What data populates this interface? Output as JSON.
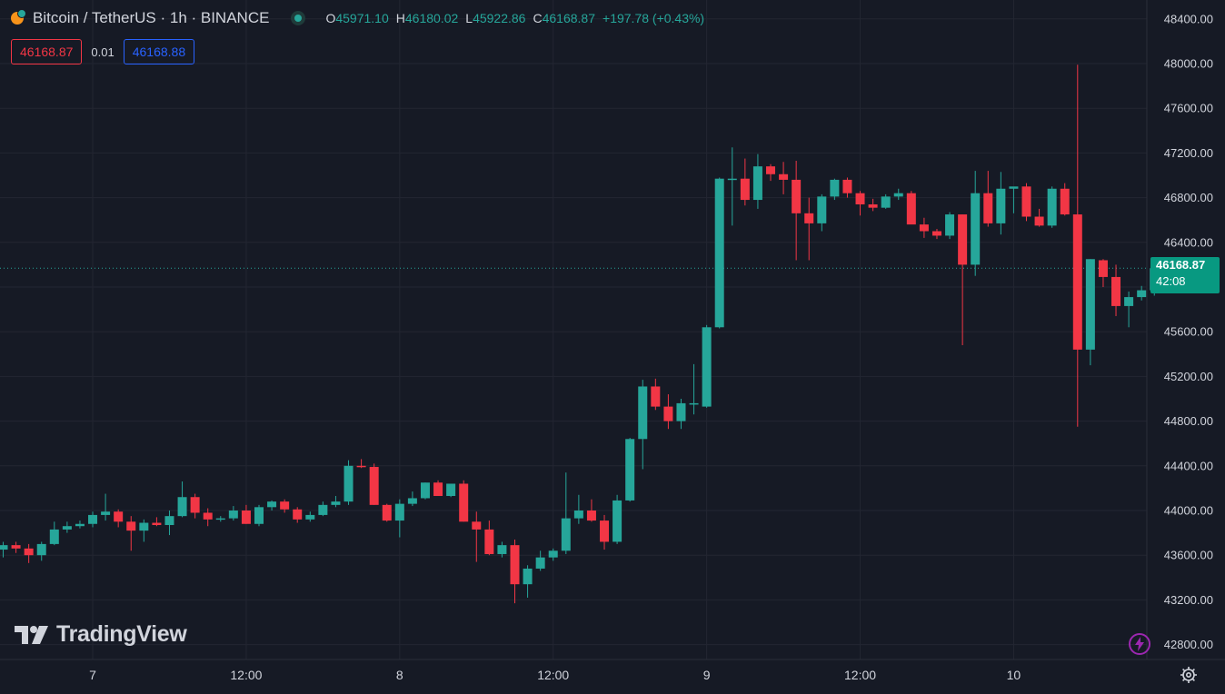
{
  "header": {
    "icon": "bitcoin-icon",
    "symbol_title": "Bitcoin / TetherUS · 1h · BINANCE",
    "ohlc": {
      "o_label": "O",
      "o_value": "45971.10",
      "h_label": "H",
      "h_value": "46180.02",
      "l_label": "L",
      "l_value": "45922.86",
      "c_label": "C",
      "c_value": "46168.87",
      "change": "+197.78 (+0.43%)"
    }
  },
  "trade": {
    "sell_price": "46168.87",
    "spread": "0.01",
    "buy_price": "46168.88"
  },
  "last_price": {
    "price": "46168.87",
    "countdown": "42:08"
  },
  "logo_text": "TradingView",
  "colors": {
    "background": "#161a25",
    "up": "#26a69a",
    "down": "#f23645",
    "grid": "#232632",
    "text": "#d1d4dc",
    "price_tag": "#089981"
  },
  "chart_data": {
    "type": "candlestick",
    "title": "Bitcoin / TetherUS · 1h · BINANCE",
    "xlabel": "",
    "ylabel": "",
    "ylim": [
      42700,
      48500
    ],
    "y_ticks": [
      "48400.00",
      "48000.00",
      "47600.00",
      "47200.00",
      "46800.00",
      "46400.00",
      "46000.00",
      "45600.00",
      "45200.00",
      "44800.00",
      "44400.00",
      "44000.00",
      "43600.00",
      "43200.00",
      "42800.00"
    ],
    "x_tick_labels": [
      {
        "label": "7",
        "index": 7
      },
      {
        "label": "12:00",
        "index": 19
      },
      {
        "label": "8",
        "index": 31
      },
      {
        "label": "12:00",
        "index": 43
      },
      {
        "label": "9",
        "index": 55
      },
      {
        "label": "12:00",
        "index": 67
      },
      {
        "label": "10",
        "index": 79
      }
    ],
    "grid": true,
    "last_price": 46168.87,
    "candles": [
      {
        "o": 43650,
        "h": 43720,
        "l": 43580,
        "c": 43690
      },
      {
        "o": 43690,
        "h": 43720,
        "l": 43620,
        "c": 43660
      },
      {
        "o": 43660,
        "h": 43700,
        "l": 43530,
        "c": 43600
      },
      {
        "o": 43600,
        "h": 43720,
        "l": 43550,
        "c": 43700
      },
      {
        "o": 43700,
        "h": 43900,
        "l": 43690,
        "c": 43830
      },
      {
        "o": 43830,
        "h": 43900,
        "l": 43800,
        "c": 43860
      },
      {
        "o": 43860,
        "h": 43910,
        "l": 43840,
        "c": 43880
      },
      {
        "o": 43880,
        "h": 43990,
        "l": 43850,
        "c": 43960
      },
      {
        "o": 43960,
        "h": 44150,
        "l": 43910,
        "c": 43990
      },
      {
        "o": 43990,
        "h": 44010,
        "l": 43850,
        "c": 43900
      },
      {
        "o": 43900,
        "h": 43950,
        "l": 43640,
        "c": 43820
      },
      {
        "o": 43820,
        "h": 43920,
        "l": 43720,
        "c": 43890
      },
      {
        "o": 43890,
        "h": 43940,
        "l": 43860,
        "c": 43870
      },
      {
        "o": 43870,
        "h": 44000,
        "l": 43780,
        "c": 43950
      },
      {
        "o": 43950,
        "h": 44260,
        "l": 43940,
        "c": 44120
      },
      {
        "o": 44120,
        "h": 44150,
        "l": 43930,
        "c": 43980
      },
      {
        "o": 43980,
        "h": 44020,
        "l": 43860,
        "c": 43920
      },
      {
        "o": 43920,
        "h": 43950,
        "l": 43900,
        "c": 43930
      },
      {
        "o": 43930,
        "h": 44040,
        "l": 43910,
        "c": 44000
      },
      {
        "o": 44000,
        "h": 44050,
        "l": 43880,
        "c": 43880
      },
      {
        "o": 43880,
        "h": 44050,
        "l": 43860,
        "c": 44030
      },
      {
        "o": 44030,
        "h": 44090,
        "l": 44000,
        "c": 44080
      },
      {
        "o": 44080,
        "h": 44100,
        "l": 43980,
        "c": 44010
      },
      {
        "o": 44010,
        "h": 44030,
        "l": 43890,
        "c": 43920
      },
      {
        "o": 43920,
        "h": 43990,
        "l": 43900,
        "c": 43960
      },
      {
        "o": 43960,
        "h": 44080,
        "l": 43950,
        "c": 44050
      },
      {
        "o": 44050,
        "h": 44130,
        "l": 44030,
        "c": 44080
      },
      {
        "o": 44080,
        "h": 44450,
        "l": 44050,
        "c": 44400
      },
      {
        "o": 44400,
        "h": 44460,
        "l": 44380,
        "c": 44390
      },
      {
        "o": 44390,
        "h": 44420,
        "l": 44050,
        "c": 44050
      },
      {
        "o": 44050,
        "h": 44060,
        "l": 43900,
        "c": 43910
      },
      {
        "o": 43910,
        "h": 44100,
        "l": 43760,
        "c": 44060
      },
      {
        "o": 44060,
        "h": 44170,
        "l": 44040,
        "c": 44110
      },
      {
        "o": 44110,
        "h": 44250,
        "l": 44100,
        "c": 44250
      },
      {
        "o": 44250,
        "h": 44270,
        "l": 44130,
        "c": 44130
      },
      {
        "o": 44130,
        "h": 44240,
        "l": 44120,
        "c": 44240
      },
      {
        "o": 44240,
        "h": 44270,
        "l": 43900,
        "c": 43900
      },
      {
        "o": 43900,
        "h": 43990,
        "l": 43540,
        "c": 43830
      },
      {
        "o": 43830,
        "h": 43910,
        "l": 43600,
        "c": 43610
      },
      {
        "o": 43610,
        "h": 43720,
        "l": 43580,
        "c": 43690
      },
      {
        "o": 43690,
        "h": 43740,
        "l": 43170,
        "c": 43340
      },
      {
        "o": 43340,
        "h": 43510,
        "l": 43220,
        "c": 43480
      },
      {
        "o": 43480,
        "h": 43640,
        "l": 43460,
        "c": 43580
      },
      {
        "o": 43580,
        "h": 43660,
        "l": 43550,
        "c": 43640
      },
      {
        "o": 43640,
        "h": 44340,
        "l": 43610,
        "c": 43930
      },
      {
        "o": 43930,
        "h": 44140,
        "l": 43880,
        "c": 44000
      },
      {
        "o": 44000,
        "h": 44100,
        "l": 43900,
        "c": 43910
      },
      {
        "o": 43910,
        "h": 43960,
        "l": 43650,
        "c": 43720
      },
      {
        "o": 43720,
        "h": 44140,
        "l": 43700,
        "c": 44090
      },
      {
        "o": 44090,
        "h": 44650,
        "l": 44080,
        "c": 44640
      },
      {
        "o": 44640,
        "h": 45170,
        "l": 44370,
        "c": 45110
      },
      {
        "o": 45110,
        "h": 45180,
        "l": 44900,
        "c": 44930
      },
      {
        "o": 44930,
        "h": 45040,
        "l": 44730,
        "c": 44800
      },
      {
        "o": 44800,
        "h": 45000,
        "l": 44730,
        "c": 44960
      },
      {
        "o": 44960,
        "h": 45310,
        "l": 44860,
        "c": 44960
      },
      {
        "o": 44930,
        "h": 45660,
        "l": 44920,
        "c": 45640
      },
      {
        "o": 45640,
        "h": 46980,
        "l": 45630,
        "c": 46970
      },
      {
        "o": 46970,
        "h": 47250,
        "l": 46550,
        "c": 46970
      },
      {
        "o": 46970,
        "h": 47150,
        "l": 46730,
        "c": 46780
      },
      {
        "o": 46780,
        "h": 47190,
        "l": 46700,
        "c": 47080
      },
      {
        "o": 47080,
        "h": 47100,
        "l": 46950,
        "c": 47010
      },
      {
        "o": 47010,
        "h": 47120,
        "l": 46830,
        "c": 46960
      },
      {
        "o": 46960,
        "h": 47130,
        "l": 46240,
        "c": 46660
      },
      {
        "o": 46660,
        "h": 46800,
        "l": 46240,
        "c": 46570
      },
      {
        "o": 46570,
        "h": 46830,
        "l": 46500,
        "c": 46810
      },
      {
        "o": 46810,
        "h": 46970,
        "l": 46780,
        "c": 46960
      },
      {
        "o": 46960,
        "h": 46980,
        "l": 46800,
        "c": 46840
      },
      {
        "o": 46840,
        "h": 46860,
        "l": 46640,
        "c": 46740
      },
      {
        "o": 46740,
        "h": 46790,
        "l": 46680,
        "c": 46710
      },
      {
        "o": 46710,
        "h": 46830,
        "l": 46700,
        "c": 46810
      },
      {
        "o": 46810,
        "h": 46880,
        "l": 46780,
        "c": 46840
      },
      {
        "o": 46840,
        "h": 46860,
        "l": 46580,
        "c": 46560
      },
      {
        "o": 46560,
        "h": 46620,
        "l": 46440,
        "c": 46500
      },
      {
        "o": 46500,
        "h": 46520,
        "l": 46430,
        "c": 46460
      },
      {
        "o": 46460,
        "h": 46670,
        "l": 46430,
        "c": 46650
      },
      {
        "o": 46650,
        "h": 46650,
        "l": 45480,
        "c": 46200
      },
      {
        "o": 46200,
        "h": 47040,
        "l": 46100,
        "c": 46840
      },
      {
        "o": 46840,
        "h": 47040,
        "l": 46540,
        "c": 46570
      },
      {
        "o": 46570,
        "h": 47030,
        "l": 46470,
        "c": 46880
      },
      {
        "o": 46880,
        "h": 46890,
        "l": 46660,
        "c": 46900
      },
      {
        "o": 46900,
        "h": 46930,
        "l": 46590,
        "c": 46630
      },
      {
        "o": 46630,
        "h": 46700,
        "l": 46540,
        "c": 46550
      },
      {
        "o": 46550,
        "h": 46900,
        "l": 46530,
        "c": 46880
      },
      {
        "o": 46880,
        "h": 46930,
        "l": 46640,
        "c": 46650
      },
      {
        "o": 46650,
        "h": 47990,
        "l": 44750,
        "c": 45440
      },
      {
        "o": 45440,
        "h": 46250,
        "l": 45300,
        "c": 46250
      },
      {
        "o": 46240,
        "h": 46250,
        "l": 46000,
        "c": 46090
      },
      {
        "o": 46090,
        "h": 46200,
        "l": 45740,
        "c": 45830
      },
      {
        "o": 45830,
        "h": 45960,
        "l": 45640,
        "c": 45910
      },
      {
        "o": 45910,
        "h": 46010,
        "l": 45880,
        "c": 45971.1
      },
      {
        "o": 45971.1,
        "h": 46180.02,
        "l": 45922.86,
        "c": 46168.87
      }
    ]
  }
}
